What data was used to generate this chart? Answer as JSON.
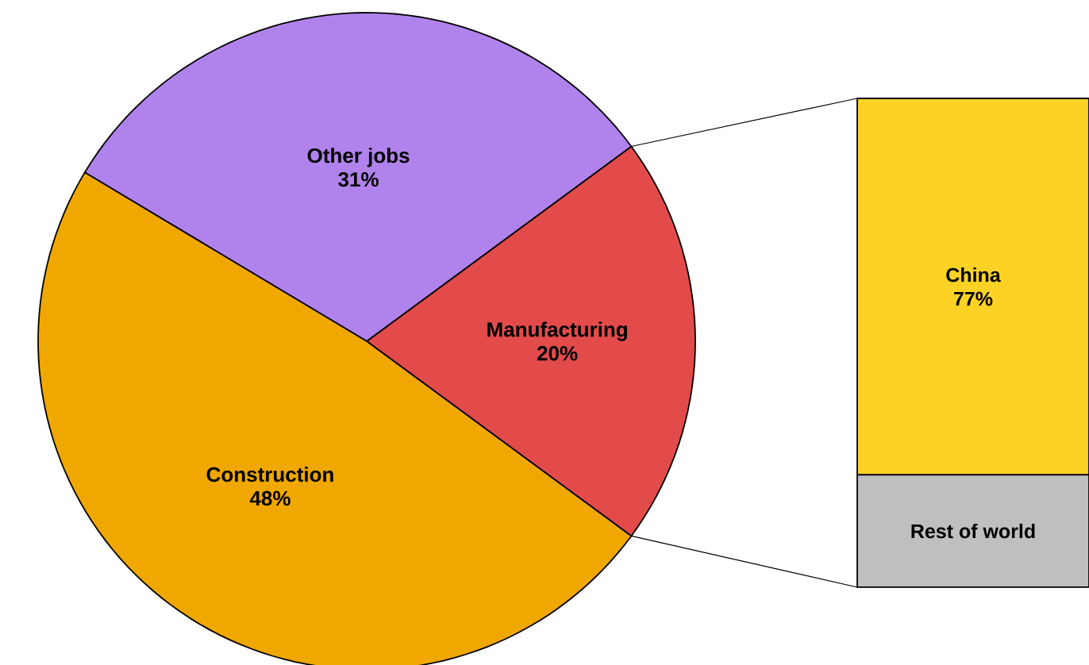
{
  "chart_data": [
    {
      "type": "pie",
      "categories": [
        "Manufacturing",
        "Other jobs",
        "Construction"
      ],
      "values": [
        20,
        31,
        48
      ],
      "colors": [
        "#e34b4b",
        "#b083ec",
        "#f0a800"
      ],
      "value_labels": [
        "20%",
        "31%",
        "48%"
      ]
    },
    {
      "type": "bar",
      "stacked": true,
      "categories": [
        null
      ],
      "series": [
        {
          "name": "Rest of world",
          "color": "#bfbfbf",
          "values": [
            23
          ],
          "value_labels": [
            null
          ]
        },
        {
          "name": "China",
          "color": "#fcd225",
          "values": [
            77
          ],
          "value_labels": [
            "77%"
          ]
        }
      ]
    }
  ]
}
